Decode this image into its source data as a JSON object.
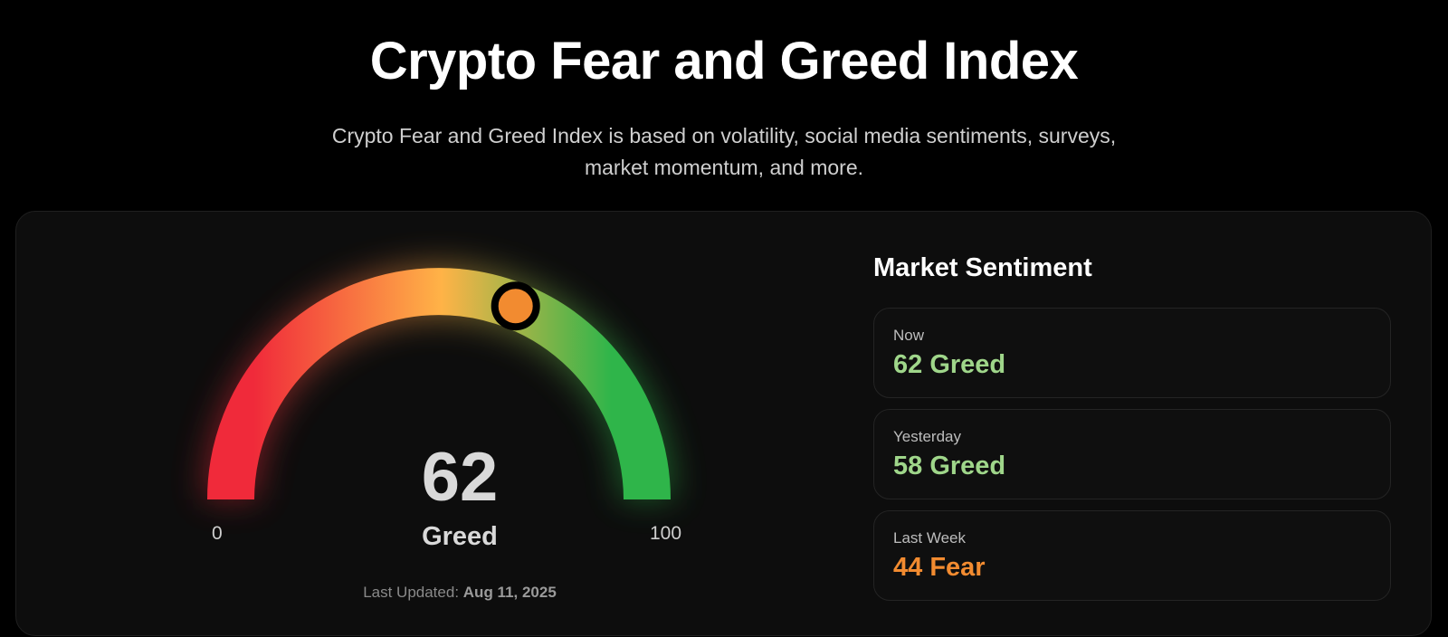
{
  "header": {
    "title": "Crypto Fear and Greed Index",
    "subtitle_line1": "Crypto Fear and Greed Index is based on volatility, social media sentiments, surveys,",
    "subtitle_line2": "market momentum, and more."
  },
  "gauge": {
    "value": 62,
    "value_text": "62",
    "label": "Greed",
    "min_label": "0",
    "max_label": "100",
    "last_updated_label": "Last Updated:",
    "last_updated_date": "Aug 11, 2025",
    "colors": {
      "fear": "#f02a3a",
      "mid": "#ffb347",
      "greed": "#2fb54a",
      "marker": "#f28b30"
    }
  },
  "sentiment": {
    "title": "Market Sentiment",
    "items": [
      {
        "period": "Now",
        "reading": "62 Greed",
        "color": "#9fd68a"
      },
      {
        "period": "Yesterday",
        "reading": "58 Greed",
        "color": "#9fd68a"
      },
      {
        "period": "Last Week",
        "reading": "44 Fear",
        "color": "#f28b30"
      }
    ]
  }
}
